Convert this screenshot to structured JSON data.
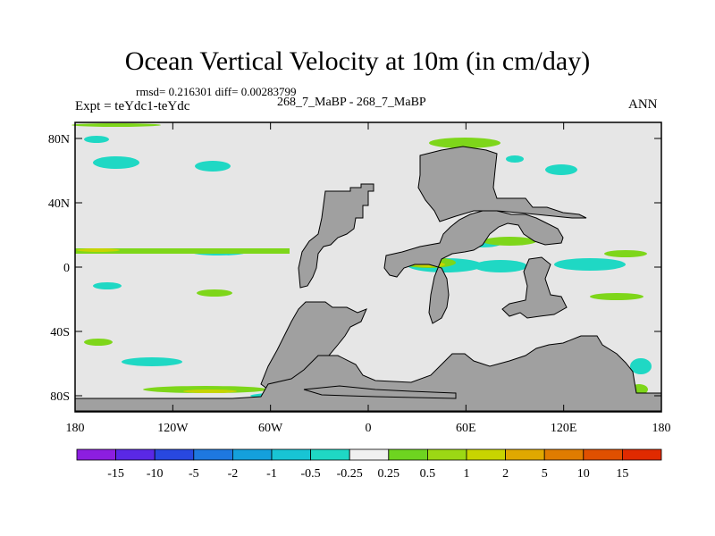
{
  "title": "Ocean Vertical Velocity at 10m (in cm/day)",
  "stats_line": "rmsd= 0.216301 diff= 0.00283799",
  "expt_label": "Expt = teYdc1-teYdc",
  "case_label": "268_7_MaBP - 268_7_MaBP",
  "season_label": "ANN",
  "colors": {
    "land": "#a0a0a0",
    "ocean_neutral": "#e6e6e6",
    "neg_weak": "#1fd8c4",
    "pos_weak": "#7ed61a",
    "pos_mid": "#c8d400"
  },
  "chart_data": {
    "type": "heatmap",
    "title": "Ocean Vertical Velocity at 10m (in cm/day)",
    "xlabel": "",
    "ylabel": "",
    "xlim": [
      -180,
      180
    ],
    "ylim": [
      -90,
      90
    ],
    "x_ticks": [
      {
        "value": -180,
        "label": "180"
      },
      {
        "value": -120,
        "label": "120W"
      },
      {
        "value": -60,
        "label": "60W"
      },
      {
        "value": 0,
        "label": "0"
      },
      {
        "value": 60,
        "label": "60E"
      },
      {
        "value": 120,
        "label": "120E"
      },
      {
        "value": 180,
        "label": "180"
      }
    ],
    "y_ticks": [
      {
        "value": 80,
        "label": "80N"
      },
      {
        "value": 40,
        "label": "40N"
      },
      {
        "value": 0,
        "label": "0"
      },
      {
        "value": -40,
        "label": "40S"
      },
      {
        "value": -80,
        "label": "80S"
      }
    ],
    "colorbar": {
      "levels": [
        "-15",
        "-10",
        "-5",
        "-2",
        "-1",
        "-0.5",
        "-0.25",
        "0.25",
        "0.5",
        "1",
        "2",
        "5",
        "10",
        "15"
      ],
      "colors": [
        "#8c1ee0",
        "#5a28e6",
        "#2848e0",
        "#1e78e0",
        "#14a0dc",
        "#18c4d4",
        "#1fd8c4",
        "#f0f0f0",
        "#6ed420",
        "#9cd814",
        "#c8d400",
        "#e0a800",
        "#e07c00",
        "#e05000",
        "#e02a00"
      ]
    }
  }
}
